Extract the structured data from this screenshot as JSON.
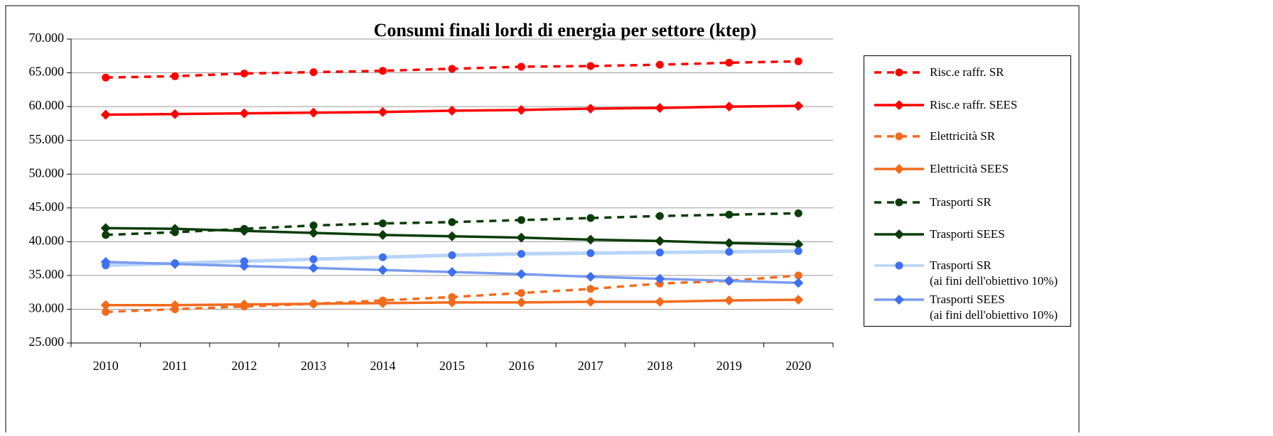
{
  "chart_data": {
    "type": "line",
    "title": "Consumi finali lordi di energia per settore (ktep)",
    "categories": [
      "2010",
      "2011",
      "2012",
      "2013",
      "2014",
      "2015",
      "2016",
      "2017",
      "2018",
      "2019",
      "2020"
    ],
    "ylim": [
      25000,
      70000
    ],
    "yticks": [
      {
        "value": 25000,
        "label": "25.000"
      },
      {
        "value": 30000,
        "label": "30.000"
      },
      {
        "value": 35000,
        "label": "35.000"
      },
      {
        "value": 40000,
        "label": "40.000"
      },
      {
        "value": 45000,
        "label": "45.000"
      },
      {
        "value": 50000,
        "label": "50.000"
      },
      {
        "value": 55000,
        "label": "55.000"
      },
      {
        "value": 60000,
        "label": "60.000"
      },
      {
        "value": 65000,
        "label": "65.000"
      },
      {
        "value": 70000,
        "label": "70.000"
      }
    ],
    "grid": true,
    "legend": "right",
    "series": [
      {
        "name": "Risc.e raffr. SR",
        "color": "#ff0000",
        "marker_color": "#ff0000",
        "dash": true,
        "marker": "circle",
        "values": [
          64300,
          64500,
          64900,
          65100,
          65300,
          65600,
          65900,
          66000,
          66200,
          66500,
          66700
        ]
      },
      {
        "name": "Risc.e raffr. SEES",
        "color": "#ff0000",
        "marker_color": "#ff0000",
        "dash": false,
        "marker": "diamond",
        "values": [
          58800,
          58900,
          59000,
          59100,
          59200,
          59400,
          59500,
          59700,
          59800,
          60000,
          60100
        ]
      },
      {
        "name": "Elettricità SR",
        "color": "#f26b1d",
        "marker_color": "#f26b1d",
        "dash": true,
        "marker": "circle",
        "values": [
          29600,
          30000,
          30400,
          30800,
          31300,
          31800,
          32400,
          33000,
          33800,
          34200,
          35000
        ]
      },
      {
        "name": "Elettricità SEES",
        "color": "#f26b1d",
        "marker_color": "#f26b1d",
        "dash": false,
        "marker": "diamond",
        "values": [
          30600,
          30600,
          30700,
          30800,
          30900,
          31000,
          31000,
          31100,
          31100,
          31300,
          31400
        ]
      },
      {
        "name": "Trasporti SR",
        "color": "#0b3d0b",
        "marker_color": "#0b3d0b",
        "dash": true,
        "marker": "circle",
        "values": [
          41000,
          41400,
          41900,
          42400,
          42700,
          42900,
          43200,
          43500,
          43800,
          44000,
          44200
        ]
      },
      {
        "name": "Trasporti SEES",
        "color": "#0b3d0b",
        "marker_color": "#0b3d0b",
        "dash": false,
        "marker": "diamond",
        "values": [
          42000,
          41900,
          41600,
          41300,
          41000,
          40800,
          40600,
          40300,
          40100,
          39800,
          39600
        ]
      },
      {
        "name": "Trasporti SR\n(ai fini dell'obiettivo 10%)",
        "color": "#b8d4f8",
        "marker_color": "#3d6ff0",
        "dash": false,
        "marker": "circle",
        "values": [
          36500,
          36800,
          37100,
          37400,
          37700,
          38000,
          38200,
          38300,
          38400,
          38500,
          38600
        ]
      },
      {
        "name": "Trasporti SEES\n(ai fini dell'obiettivo 10%)",
        "color": "#7a9cf0",
        "marker_color": "#3d6ff0",
        "dash": false,
        "marker": "diamond",
        "values": [
          37000,
          36700,
          36400,
          36100,
          35800,
          35500,
          35200,
          34800,
          34500,
          34200,
          33900
        ]
      }
    ]
  }
}
